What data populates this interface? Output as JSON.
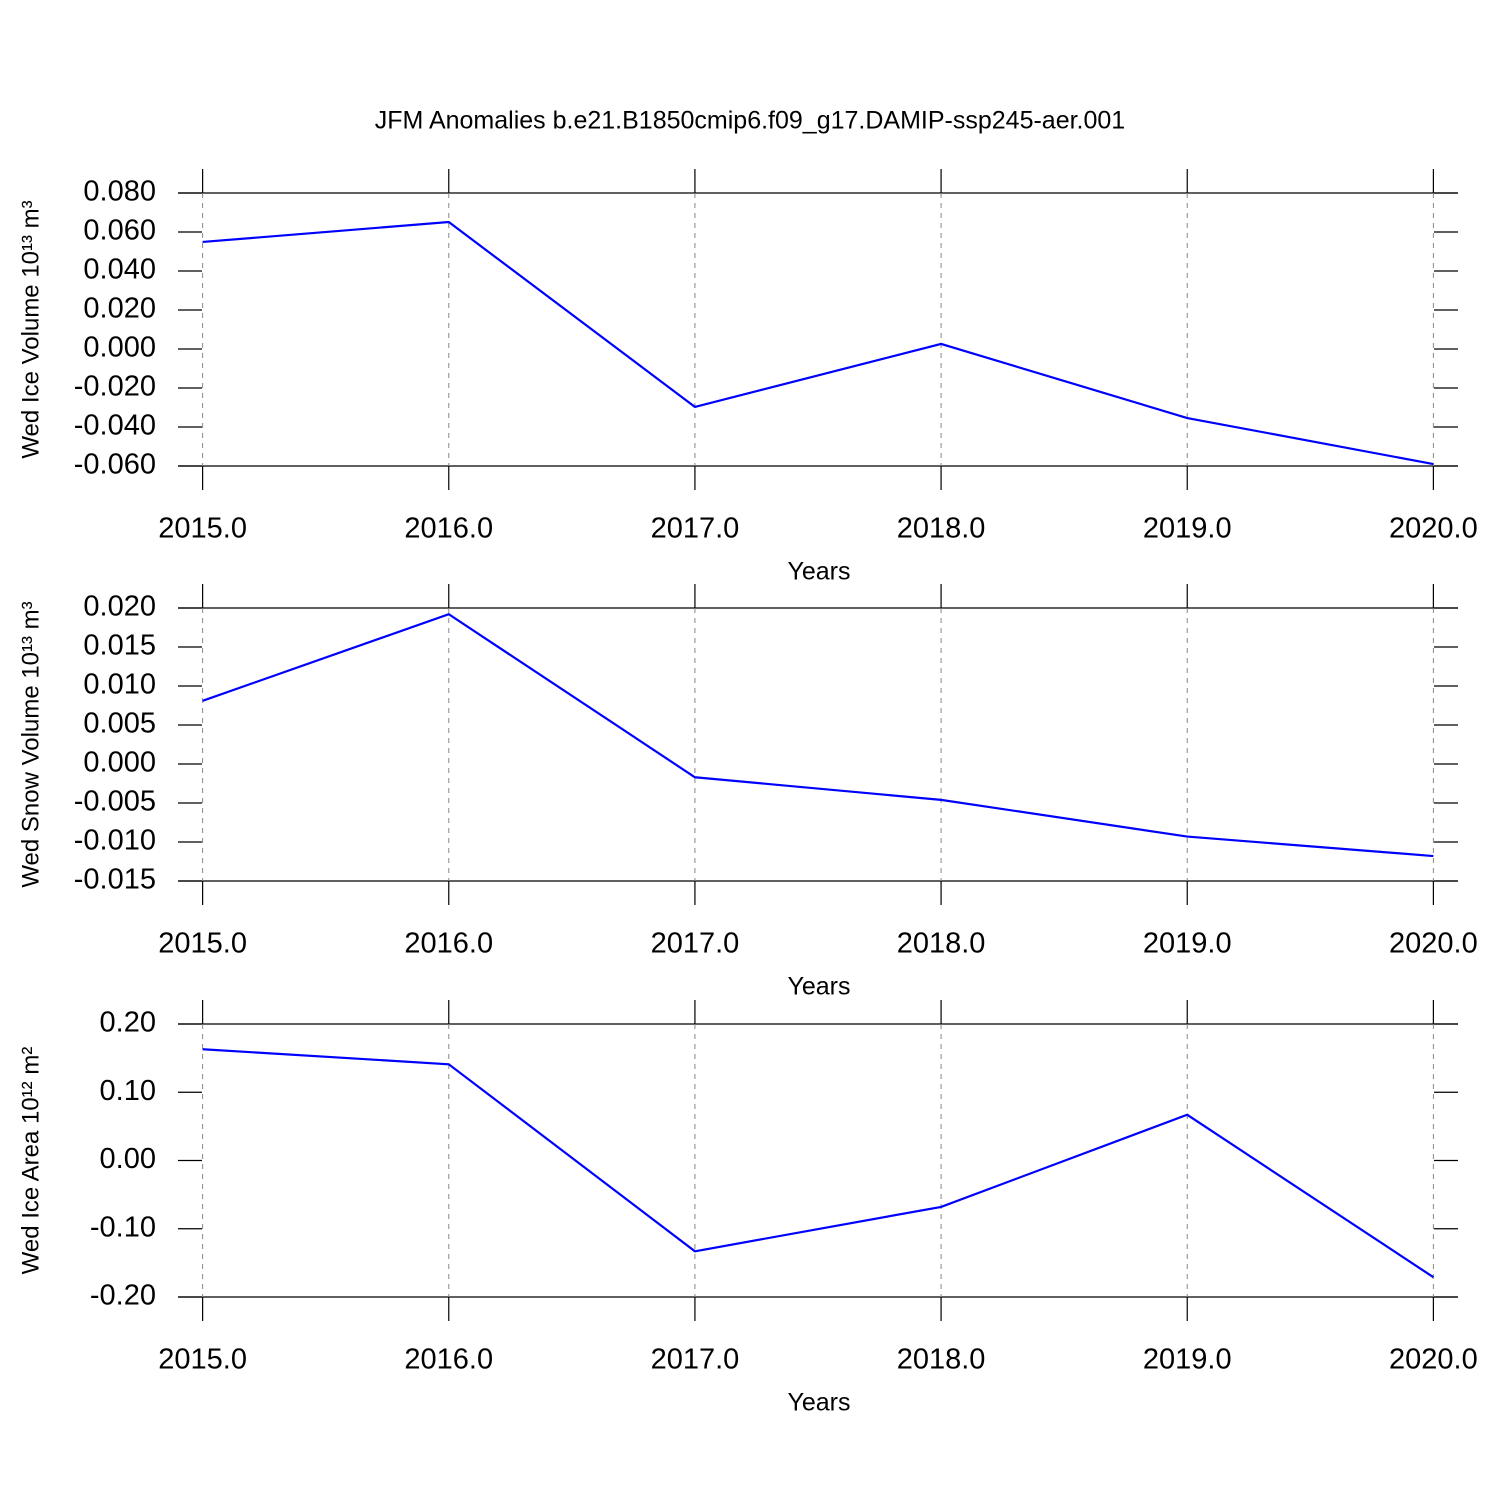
{
  "title": "JFM Anomalies b.e21.B1850cmip6.f09_g17.DAMIP-ssp245-aer.001",
  "chart_data": [
    {
      "type": "line",
      "ylabel": "Wed Ice Volume 10¹³ m³",
      "xlabel": "Years",
      "x": [
        2015,
        2016,
        2017,
        2018,
        2019,
        2020
      ],
      "series": [
        {
          "color": "#0000ff",
          "values": [
            0.0549,
            0.0651,
            -0.0297,
            0.0026,
            -0.0354,
            -0.059
          ]
        }
      ],
      "xlim": [
        2014.9,
        2020.1
      ],
      "ylim": [
        -0.06,
        0.08
      ],
      "xticks": [
        {
          "value": 2015,
          "label": "2015.0"
        },
        {
          "value": 2016,
          "label": "2016.0"
        },
        {
          "value": 2017,
          "label": "2017.0"
        },
        {
          "value": 2018,
          "label": "2018.0"
        },
        {
          "value": 2019,
          "label": "2019.0"
        },
        {
          "value": 2020,
          "label": "2020.0"
        }
      ],
      "yticks": [
        {
          "value": 0.08,
          "label": "0.080"
        },
        {
          "value": 0.06,
          "label": "0.060"
        },
        {
          "value": 0.04,
          "label": "0.040"
        },
        {
          "value": 0.02,
          "label": "0.020"
        },
        {
          "value": 0,
          "label": "0.000"
        },
        {
          "value": -0.02,
          "label": "-0.020"
        },
        {
          "value": -0.04,
          "label": "-0.040"
        },
        {
          "value": -0.06,
          "label": "-0.060"
        }
      ],
      "xgrid": true
    },
    {
      "type": "line",
      "ylabel": "Wed Snow Volume 10¹³ m³",
      "xlabel": "Years",
      "x": [
        2015,
        2016,
        2017,
        2018,
        2019,
        2020
      ],
      "series": [
        {
          "color": "#0000ff",
          "values": [
            0.0081,
            0.0192,
            -0.0017,
            -0.0046,
            -0.0093,
            -0.0118
          ]
        }
      ],
      "xlim": [
        2014.9,
        2020.1
      ],
      "ylim": [
        -0.015,
        0.02
      ],
      "xticks": [
        {
          "value": 2015,
          "label": "2015.0"
        },
        {
          "value": 2016,
          "label": "2016.0"
        },
        {
          "value": 2017,
          "label": "2017.0"
        },
        {
          "value": 2018,
          "label": "2018.0"
        },
        {
          "value": 2019,
          "label": "2019.0"
        },
        {
          "value": 2020,
          "label": "2020.0"
        }
      ],
      "yticks": [
        {
          "value": 0.02,
          "label": "0.020"
        },
        {
          "value": 0.015,
          "label": "0.015"
        },
        {
          "value": 0.01,
          "label": "0.010"
        },
        {
          "value": 0.005,
          "label": "0.005"
        },
        {
          "value": 0,
          "label": "0.000"
        },
        {
          "value": -0.005,
          "label": "-0.005"
        },
        {
          "value": -0.01,
          "label": "-0.010"
        },
        {
          "value": -0.015,
          "label": "-0.015"
        }
      ],
      "xgrid": true
    },
    {
      "type": "line",
      "ylabel": "Wed Ice Area 10¹² m²",
      "xlabel": "Years",
      "x": [
        2015,
        2016,
        2017,
        2018,
        2019,
        2020
      ],
      "series": [
        {
          "color": "#0000ff",
          "values": [
            0.163,
            0.141,
            -0.133,
            -0.068,
            0.067,
            -0.171
          ]
        }
      ],
      "xlim": [
        2014.9,
        2020.1
      ],
      "ylim": [
        -0.2,
        0.2
      ],
      "xticks": [
        {
          "value": 2015,
          "label": "2015.0"
        },
        {
          "value": 2016,
          "label": "2016.0"
        },
        {
          "value": 2017,
          "label": "2017.0"
        },
        {
          "value": 2018,
          "label": "2018.0"
        },
        {
          "value": 2019,
          "label": "2019.0"
        },
        {
          "value": 2020,
          "label": "2020.0"
        }
      ],
      "yticks": [
        {
          "value": 0.2,
          "label": "0.20"
        },
        {
          "value": 0.1,
          "label": "0.10"
        },
        {
          "value": 0,
          "label": "0.00"
        },
        {
          "value": -0.1,
          "label": "-0.10"
        },
        {
          "value": -0.2,
          "label": "-0.20"
        }
      ],
      "xgrid": true
    }
  ]
}
